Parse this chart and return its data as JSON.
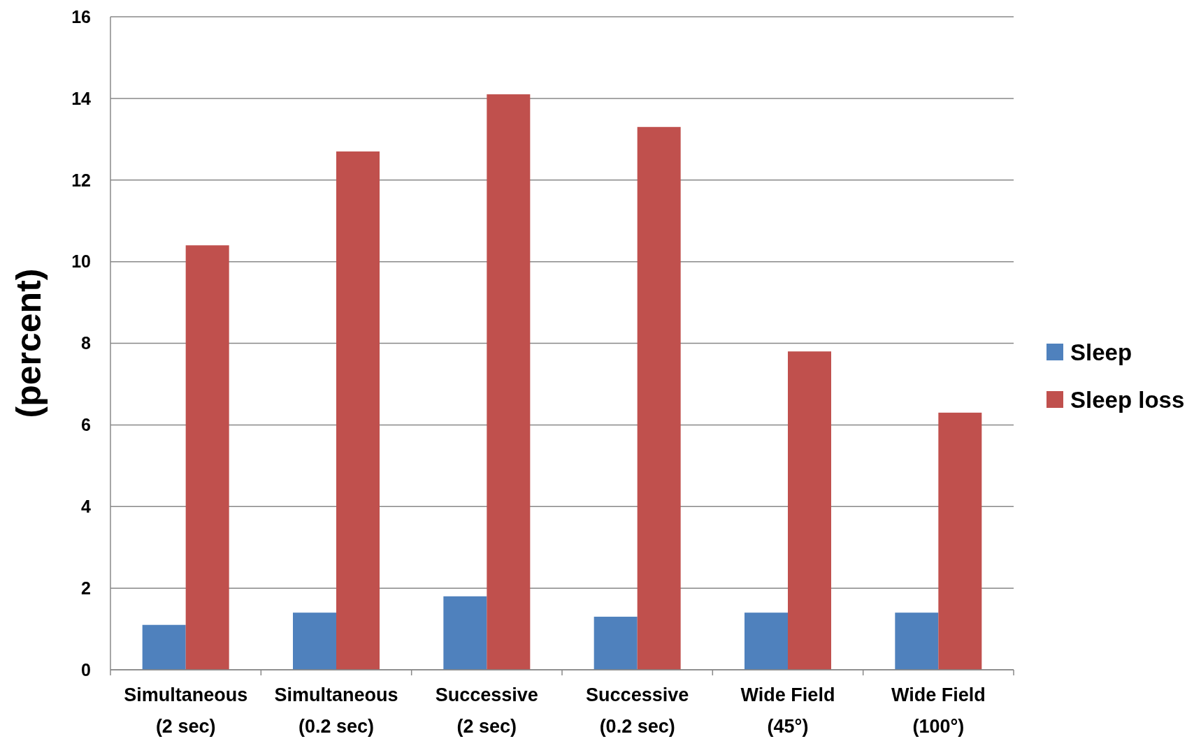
{
  "chart_data": {
    "type": "bar",
    "ylabel": "(percent)",
    "categories": [
      "Simultaneous (2 sec)",
      "Simultaneous (0.2 sec)",
      "Successive (2 sec)",
      "Successive (0.2 sec)",
      "Wide Field (45°)",
      "Wide Field (100°)"
    ],
    "series": [
      {
        "name": "Sleep",
        "color": "#4f81bd",
        "values": [
          1.1,
          1.4,
          1.8,
          1.3,
          1.4,
          1.4
        ]
      },
      {
        "name": "Sleep loss",
        "color": "#c0504d",
        "values": [
          10.4,
          12.7,
          14.1,
          13.3,
          7.8,
          6.3
        ]
      }
    ],
    "ylim": [
      0,
      16
    ],
    "yticks": [
      0,
      2,
      4,
      6,
      8,
      10,
      12,
      14,
      16
    ],
    "grid": "y",
    "legend": "right"
  }
}
